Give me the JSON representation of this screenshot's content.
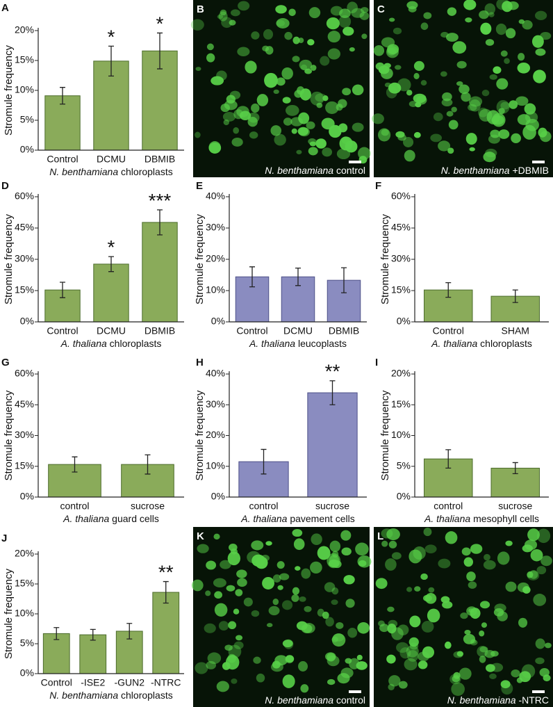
{
  "chart_data": [
    {
      "type": "bar",
      "panel": "A",
      "ylabel": "Stromule frequency",
      "xlabel_italic": "N. benthamiana",
      "xlabel": "chloroplasts",
      "categories": [
        "Control",
        "DCMU",
        "DBMIB"
      ],
      "values": [
        9.1,
        14.9,
        16.6
      ],
      "errors": [
        1.4,
        2.5,
        3.0
      ],
      "annotations": [
        null,
        "*",
        "*"
      ],
      "color": "#8aab5a",
      "ylim": [
        0,
        20
      ],
      "yticks": [
        {
          "value": 0,
          "label": "0%"
        },
        {
          "value": 5,
          "label": "5%"
        },
        {
          "value": 10,
          "label": "10%"
        },
        {
          "value": 15,
          "label": "15%"
        },
        {
          "value": 20,
          "label": "20%"
        }
      ]
    },
    {
      "type": "bar",
      "panel": "D",
      "ylabel": "Stromule frequency",
      "xlabel_italic": "A. thaliana",
      "xlabel": "chloroplasts",
      "categories": [
        "Control",
        "DCMU",
        "DBMIB"
      ],
      "values": [
        15.3,
        27.7,
        47.7
      ],
      "errors": [
        3.7,
        3.6,
        6.0
      ],
      "annotations": [
        null,
        "*",
        "***"
      ],
      "color": "#8aab5a",
      "ylim": [
        0,
        60
      ],
      "yticks": [
        {
          "value": 0,
          "label": "0%"
        },
        {
          "value": 15,
          "label": "15%"
        },
        {
          "value": 30,
          "label": "30%"
        },
        {
          "value": 45,
          "label": "45%"
        },
        {
          "value": 60,
          "label": "60%"
        }
      ]
    },
    {
      "type": "bar",
      "panel": "E",
      "ylabel": "Stromule frequency",
      "xlabel_italic": "A. thaliana",
      "xlabel": "leucoplasts",
      "categories": [
        "Control",
        "DCMU",
        "DBMIB"
      ],
      "values": [
        14.4,
        14.4,
        13.3
      ],
      "errors": [
        3.2,
        2.8,
        4.0
      ],
      "annotations": [
        null,
        null,
        null
      ],
      "color": "#8a8cc0",
      "ylim": [
        0,
        40
      ],
      "yticks": [
        {
          "value": 0,
          "label": "0%"
        },
        {
          "value": 10,
          "label": "10%"
        },
        {
          "value": 20,
          "label": "20%"
        },
        {
          "value": 30,
          "label": "30%"
        },
        {
          "value": 40,
          "label": "40%"
        }
      ]
    },
    {
      "type": "bar",
      "panel": "F",
      "ylabel": "Stromule frequency",
      "xlabel_italic": "A. thaliana",
      "xlabel": "chloroplasts",
      "categories": [
        "Control",
        "SHAM"
      ],
      "values": [
        15.3,
        12.3
      ],
      "errors": [
        3.5,
        3.0
      ],
      "annotations": [
        null,
        null
      ],
      "color": "#8aab5a",
      "ylim": [
        0,
        60
      ],
      "yticks": [
        {
          "value": 0,
          "label": "0%"
        },
        {
          "value": 15,
          "label": "15%"
        },
        {
          "value": 30,
          "label": "30%"
        },
        {
          "value": 45,
          "label": "45%"
        },
        {
          "value": 60,
          "label": "60%"
        }
      ]
    },
    {
      "type": "bar",
      "panel": "G",
      "ylabel": "Stromule frequency",
      "xlabel_italic": "A. thaliana",
      "xlabel": "guard cells",
      "categories": [
        "control",
        "sucrose"
      ],
      "values": [
        15.9,
        15.9
      ],
      "errors": [
        3.7,
        4.7
      ],
      "annotations": [
        null,
        null
      ],
      "color": "#8aab5a",
      "ylim": [
        0,
        60
      ],
      "yticks": [
        {
          "value": 0,
          "label": "0%"
        },
        {
          "value": 15,
          "label": "15%"
        },
        {
          "value": 30,
          "label": "30%"
        },
        {
          "value": 45,
          "label": "45%"
        },
        {
          "value": 60,
          "label": "60%"
        }
      ]
    },
    {
      "type": "bar",
      "panel": "H",
      "ylabel": "Stromule frequency",
      "xlabel_italic": "A. thaliana",
      "xlabel": "pavement cells",
      "categories": [
        "control",
        "sucrose"
      ],
      "values": [
        11.5,
        33.9
      ],
      "errors": [
        4.0,
        3.9
      ],
      "annotations": [
        null,
        "**"
      ],
      "color": "#8a8cc0",
      "ylim": [
        0,
        40
      ],
      "yticks": [
        {
          "value": 0,
          "label": "0%"
        },
        {
          "value": 10,
          "label": "10%"
        },
        {
          "value": 20,
          "label": "20%"
        },
        {
          "value": 30,
          "label": "30%"
        },
        {
          "value": 40,
          "label": "40%"
        }
      ]
    },
    {
      "type": "bar",
      "panel": "I",
      "ylabel": "Stromule frequency",
      "xlabel_italic": "A. thaliana",
      "xlabel": "mesophyll cells",
      "categories": [
        "control",
        "sucrose"
      ],
      "values": [
        6.2,
        4.7
      ],
      "errors": [
        1.5,
        0.9
      ],
      "annotations": [
        null,
        null
      ],
      "color": "#8aab5a",
      "ylim": [
        0,
        20
      ],
      "yticks": [
        {
          "value": 0,
          "label": "0%"
        },
        {
          "value": 5,
          "label": "5%"
        },
        {
          "value": 10,
          "label": "10%"
        },
        {
          "value": 15,
          "label": "15%"
        },
        {
          "value": 20,
          "label": "20%"
        }
      ]
    },
    {
      "type": "bar",
      "panel": "J",
      "ylabel": "Stromule frequency",
      "xlabel_italic": "N. benthamiana",
      "xlabel": "chloroplasts",
      "categories": [
        "Control",
        "-ISE2",
        "-GUN2",
        "-NTRC"
      ],
      "values": [
        6.7,
        6.5,
        7.1,
        13.6
      ],
      "errors": [
        1.0,
        0.9,
        1.3,
        1.8
      ],
      "annotations": [
        null,
        null,
        null,
        "**"
      ],
      "color": "#8aab5a",
      "ylim": [
        0,
        20
      ],
      "yticks": [
        {
          "value": 0,
          "label": "0%"
        },
        {
          "value": 5,
          "label": "5%"
        },
        {
          "value": 10,
          "label": "10%"
        },
        {
          "value": 15,
          "label": "15%"
        },
        {
          "value": 20,
          "label": "20%"
        }
      ]
    }
  ],
  "images": [
    {
      "panel": "B",
      "species": "N. benthamiana",
      "caption": "control"
    },
    {
      "panel": "C",
      "species": "N. benthamiana",
      "caption": "+DBMIB"
    },
    {
      "panel": "K",
      "species": "N. benthamiana",
      "caption": "control"
    },
    {
      "panel": "L",
      "species": "N. benthamiana",
      "caption": "-NTRC"
    }
  ]
}
